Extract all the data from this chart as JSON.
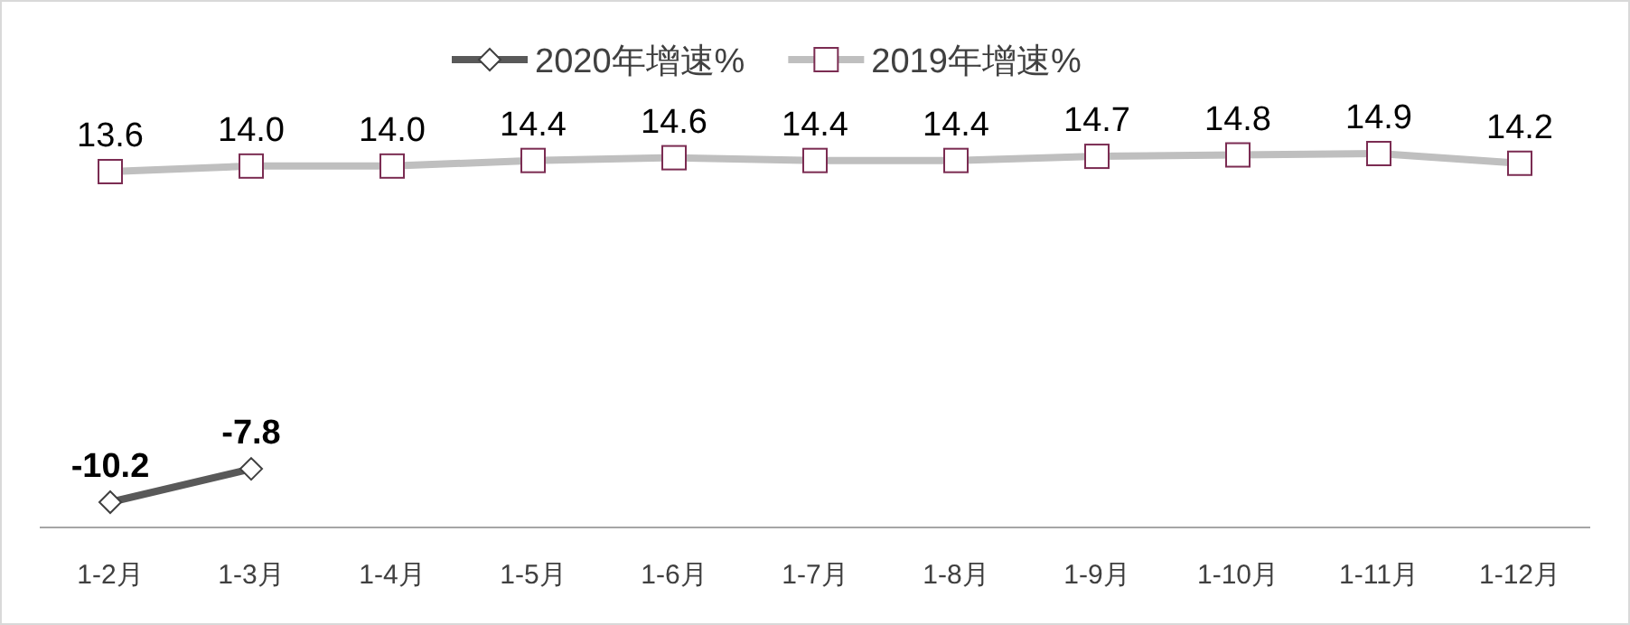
{
  "chart_data": {
    "type": "line",
    "categories": [
      "1-2月",
      "1-3月",
      "1-4月",
      "1-5月",
      "1-6月",
      "1-7月",
      "1-8月",
      "1-9月",
      "1-10月",
      "1-11月",
      "1-12月"
    ],
    "series": [
      {
        "name": "2020年增速%",
        "color": "#595959",
        "marker": "diamond",
        "values": [
          -10.2,
          -7.8,
          null,
          null,
          null,
          null,
          null,
          null,
          null,
          null,
          null
        ]
      },
      {
        "name": "2019年增速%",
        "color": "#bfbfbf",
        "marker": "square",
        "values": [
          13.6,
          14.0,
          14.0,
          14.4,
          14.6,
          14.4,
          14.4,
          14.7,
          14.8,
          14.9,
          14.2
        ],
        "value_labels": [
          "13.6",
          "14.0",
          "14.0",
          "14.4",
          "14.6",
          "14.4",
          "14.4",
          "14.7",
          "14.8",
          "14.9",
          "14.2"
        ]
      }
    ],
    "data_labels": true,
    "legend": "top"
  }
}
